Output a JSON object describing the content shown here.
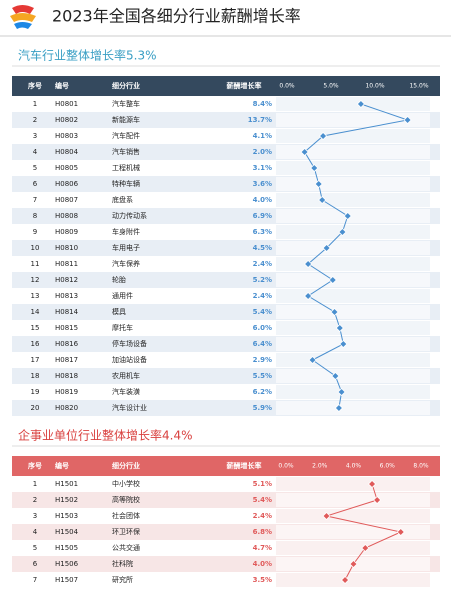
{
  "header": {
    "title": "2023年全国各细分行业薪酬增长率"
  },
  "sections": [
    {
      "title": "汽车行业整体增长率5.3%",
      "columns": [
        "序号",
        "编号",
        "细分行业",
        "薪酬增长率"
      ],
      "xlim": [
        0,
        15
      ],
      "xticks": [
        {
          "value": 0,
          "label": "0.0%"
        },
        {
          "value": 5,
          "label": "5.0%"
        },
        {
          "value": 10,
          "label": "10.0%"
        },
        {
          "value": 15,
          "label": "15.0%"
        }
      ],
      "color": "#4a8fcf",
      "rows": [
        {
          "index": 1,
          "code": "H0801",
          "name": "汽车整车",
          "value": 8.4,
          "value_label": "8.4%"
        },
        {
          "index": 2,
          "code": "H0802",
          "name": "新能源车",
          "value": 13.7,
          "value_label": "13.7%"
        },
        {
          "index": 3,
          "code": "H0803",
          "name": "汽车配件",
          "value": 4.1,
          "value_label": "4.1%"
        },
        {
          "index": 4,
          "code": "H0804",
          "name": "汽车销售",
          "value": 2.0,
          "value_label": "2.0%"
        },
        {
          "index": 5,
          "code": "H0805",
          "name": "工程机械",
          "value": 3.1,
          "value_label": "3.1%"
        },
        {
          "index": 6,
          "code": "H0806",
          "name": "特种车辆",
          "value": 3.6,
          "value_label": "3.6%"
        },
        {
          "index": 7,
          "code": "H0807",
          "name": "底盘系",
          "value": 4.0,
          "value_label": "4.0%"
        },
        {
          "index": 8,
          "code": "H0808",
          "name": "动力传动系",
          "value": 6.9,
          "value_label": "6.9%"
        },
        {
          "index": 9,
          "code": "H0809",
          "name": "车身附件",
          "value": 6.3,
          "value_label": "6.3%"
        },
        {
          "index": 10,
          "code": "H0810",
          "name": "车用电子",
          "value": 4.5,
          "value_label": "4.5%"
        },
        {
          "index": 11,
          "code": "H0811",
          "name": "汽车保养",
          "value": 2.4,
          "value_label": "2.4%"
        },
        {
          "index": 12,
          "code": "H0812",
          "name": "轮胎",
          "value": 5.2,
          "value_label": "5.2%"
        },
        {
          "index": 13,
          "code": "H0813",
          "name": "通用件",
          "value": 2.4,
          "value_label": "2.4%"
        },
        {
          "index": 14,
          "code": "H0814",
          "name": "模具",
          "value": 5.4,
          "value_label": "5.4%"
        },
        {
          "index": 15,
          "code": "H0815",
          "name": "摩托车",
          "value": 6.0,
          "value_label": "6.0%"
        },
        {
          "index": 16,
          "code": "H0816",
          "name": "停车场设备",
          "value": 6.4,
          "value_label": "6.4%"
        },
        {
          "index": 17,
          "code": "H0817",
          "name": "加油站设备",
          "value": 2.9,
          "value_label": "2.9%"
        },
        {
          "index": 18,
          "code": "H0818",
          "name": "农用机车",
          "value": 5.5,
          "value_label": "5.5%"
        },
        {
          "index": 19,
          "code": "H0819",
          "name": "汽车装潢",
          "value": 6.2,
          "value_label": "6.2%"
        },
        {
          "index": 20,
          "code": "H0820",
          "name": "汽车设计业",
          "value": 5.9,
          "value_label": "5.9%"
        }
      ]
    },
    {
      "title": "企事业单位行业整体增长率4.4%",
      "columns": [
        "序号",
        "编号",
        "细分行业",
        "薪酬增长率"
      ],
      "xlim": [
        0,
        8
      ],
      "xticks": [
        {
          "value": 0,
          "label": "0.0%"
        },
        {
          "value": 2,
          "label": "2.0%"
        },
        {
          "value": 4,
          "label": "4.0%"
        },
        {
          "value": 6,
          "label": "6.0%"
        },
        {
          "value": 8,
          "label": "8.0%"
        }
      ],
      "color": "#e05a5a",
      "rows": [
        {
          "index": 1,
          "code": "H1501",
          "name": "中小学校",
          "value": 5.1,
          "value_label": "5.1%"
        },
        {
          "index": 2,
          "code": "H1502",
          "name": "高等院校",
          "value": 5.4,
          "value_label": "5.4%"
        },
        {
          "index": 3,
          "code": "H1503",
          "name": "社会团体",
          "value": 2.4,
          "value_label": "2.4%"
        },
        {
          "index": 4,
          "code": "H1504",
          "name": "环卫环保",
          "value": 6.8,
          "value_label": "6.8%"
        },
        {
          "index": 5,
          "code": "H1505",
          "name": "公共交通",
          "value": 4.7,
          "value_label": "4.7%"
        },
        {
          "index": 6,
          "code": "H1506",
          "name": "社科院",
          "value": 4.0,
          "value_label": "4.0%"
        },
        {
          "index": 7,
          "code": "H1507",
          "name": "研究所",
          "value": 3.5,
          "value_label": "3.5%"
        }
      ]
    }
  ]
}
